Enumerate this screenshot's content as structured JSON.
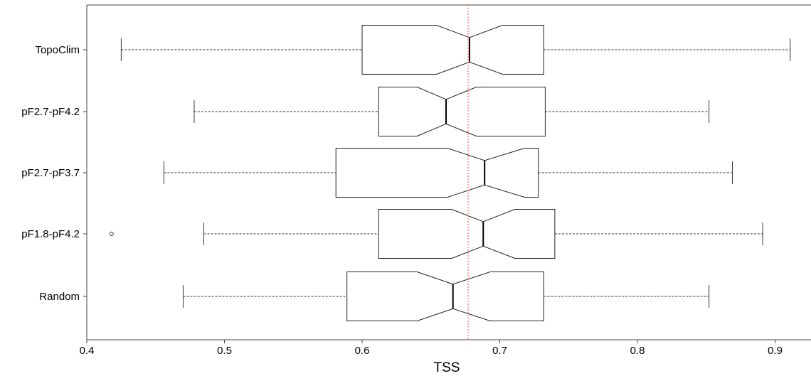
{
  "chart_data": {
    "type": "boxplot",
    "orientation": "horizontal",
    "notched": true,
    "title": "",
    "xlabel": "TSS",
    "ylabel": "",
    "xlim": [
      0.4,
      0.92
    ],
    "x_ticks": [
      "0.4",
      "0.5",
      "0.6",
      "0.7",
      "0.8",
      "0.9"
    ],
    "reference_line": {
      "value": 0.677,
      "color": "#ff4d4d",
      "style": "dotted"
    },
    "grid": false,
    "categories": [
      "TopoClim",
      "pF2.7-pF4.2",
      "pF2.7-pF3.7",
      "pF1.8-pF4.2",
      "Random"
    ],
    "boxes": [
      {
        "label": "TopoClim",
        "whisker_low": 0.425,
        "q1": 0.6,
        "notch_low": 0.654,
        "median": 0.678,
        "notch_high": 0.702,
        "q3": 0.732,
        "whisker_high": 0.911,
        "outliers": []
      },
      {
        "label": "pF2.7-pF4.2",
        "whisker_low": 0.478,
        "q1": 0.612,
        "notch_low": 0.64,
        "median": 0.661,
        "notch_high": 0.683,
        "q3": 0.733,
        "whisker_high": 0.852,
        "outliers": []
      },
      {
        "label": "pF2.7-pF3.7",
        "whisker_low": 0.456,
        "q1": 0.581,
        "notch_low": 0.662,
        "median": 0.689,
        "notch_high": 0.718,
        "q3": 0.728,
        "whisker_high": 0.869,
        "outliers": []
      },
      {
        "label": "pF1.8-pF4.2",
        "whisker_low": 0.485,
        "q1": 0.612,
        "notch_low": 0.665,
        "median": 0.688,
        "notch_high": 0.711,
        "q3": 0.74,
        "whisker_high": 0.891,
        "outliers": [
          0.418
        ]
      },
      {
        "label": "Random",
        "whisker_low": 0.47,
        "q1": 0.589,
        "notch_low": 0.64,
        "median": 0.666,
        "notch_high": 0.693,
        "q3": 0.732,
        "whisker_high": 0.852,
        "outliers": []
      }
    ]
  }
}
